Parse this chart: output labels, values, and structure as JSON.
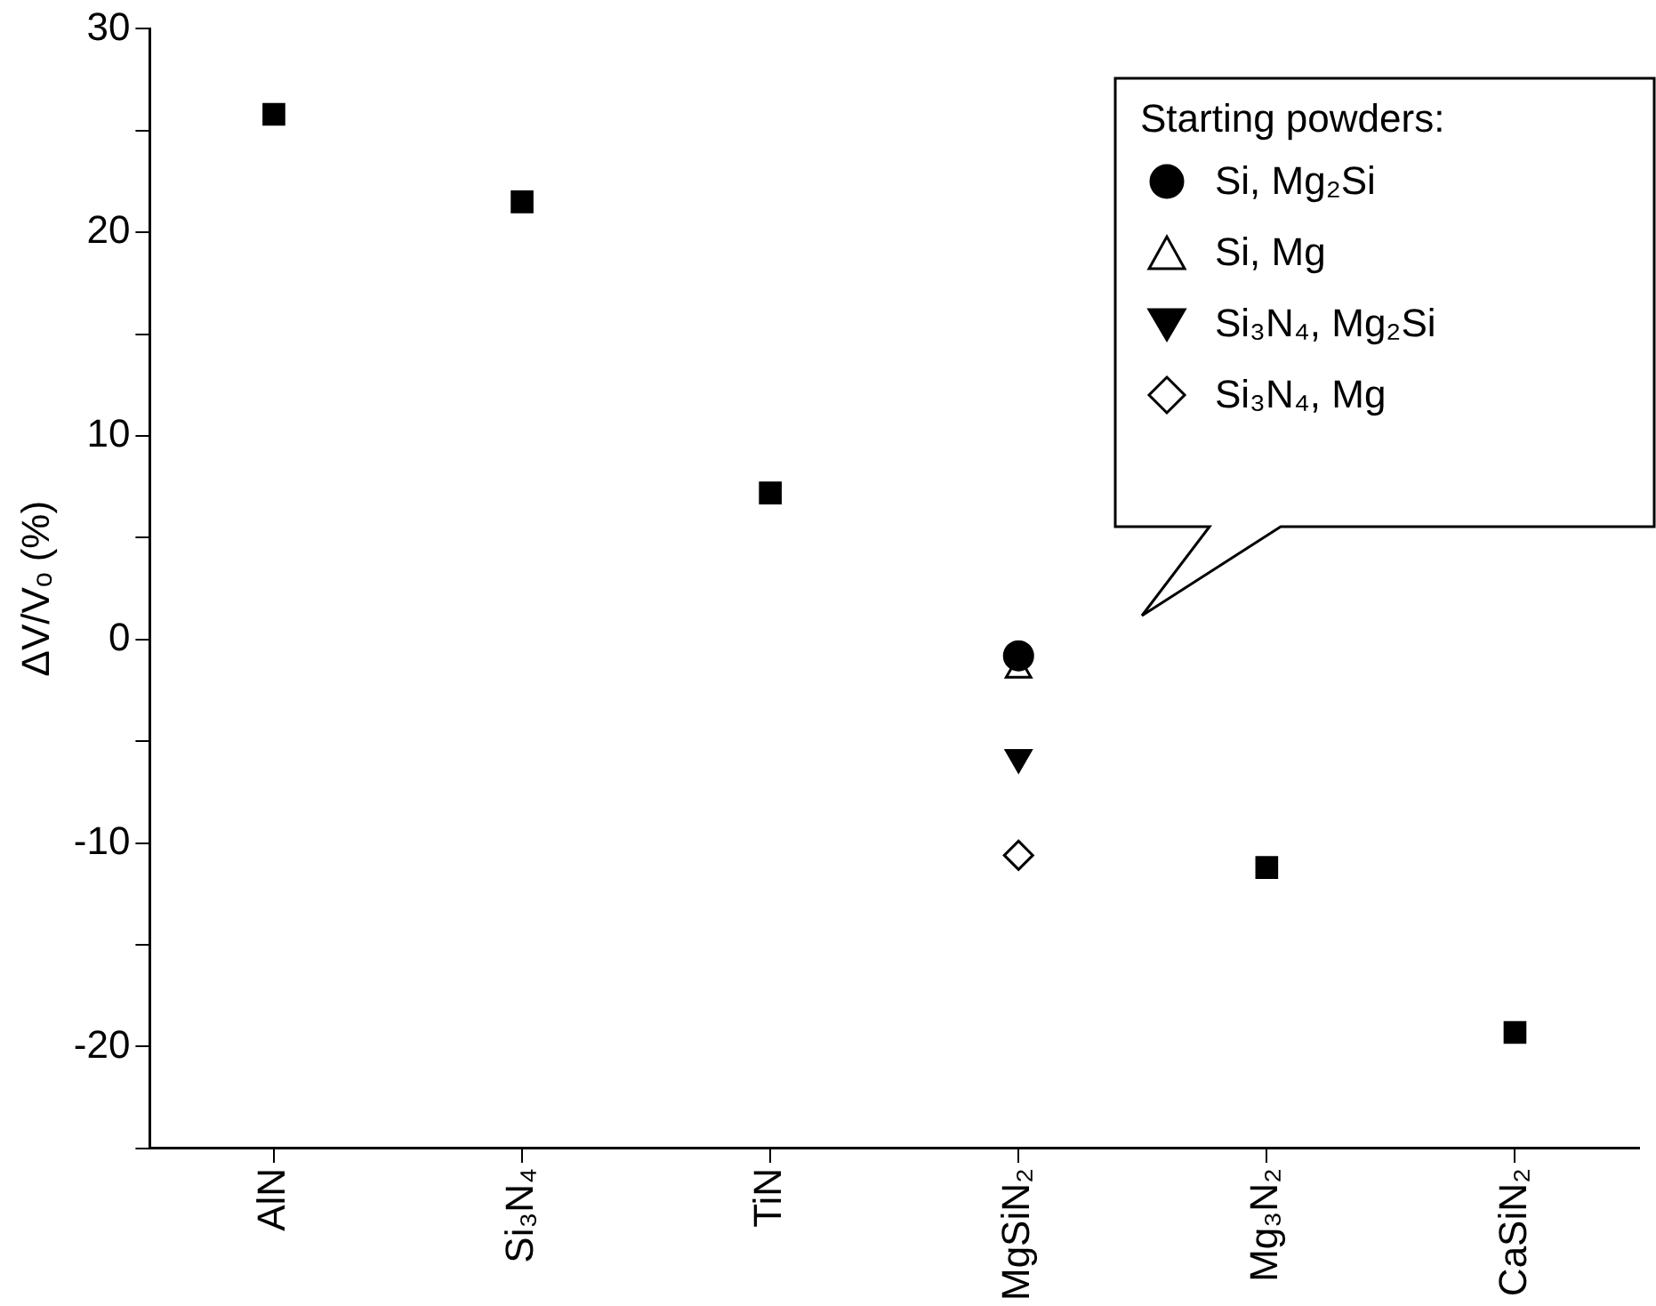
{
  "chart_data": {
    "type": "scatter",
    "ylabel": "ΔV/Vₒ (%)",
    "legend_title": "Starting powders:",
    "legend": "top right",
    "categories": [
      "AlN",
      "Si₃N₄",
      "TiN",
      "MgSiN₂",
      "Mg₃N₂",
      "CaSiN₂"
    ],
    "ylim": [
      -25,
      30
    ],
    "yticks": [
      {
        "value": -25,
        "label": null
      },
      -20,
      {
        "value": -15,
        "label": null
      },
      -10,
      {
        "value": -5,
        "label": null
      },
      0,
      {
        "value": 5,
        "label": null
      },
      10,
      {
        "value": 15,
        "label": null
      },
      20,
      {
        "value": 25,
        "label": null
      },
      30
    ],
    "grid": false,
    "series": [
      {
        "color": "#000000",
        "marker": "square",
        "values": [
          25.8,
          21.5,
          7.2,
          null,
          -11.2,
          -19.3
        ]
      },
      {
        "name": "Si, Mg₂Si",
        "color": "#000000",
        "marker": "circle",
        "values": [
          null,
          null,
          null,
          -0.8,
          null,
          null
        ]
      },
      {
        "name": "Si, Mg",
        "color": "#000000",
        "marker": "triangle-open",
        "values": [
          null,
          null,
          null,
          -1.5,
          null,
          null
        ]
      },
      {
        "name": "Si₃N₄, Mg₂Si",
        "color": "#000000",
        "marker": "triangle-down",
        "values": [
          null,
          null,
          null,
          -5.8,
          null,
          null
        ]
      },
      {
        "name": "Si₃N₄, Mg",
        "color": "#000000",
        "marker": "diamond-open",
        "values": [
          null,
          null,
          null,
          -10.6,
          null,
          null
        ]
      }
    ]
  }
}
